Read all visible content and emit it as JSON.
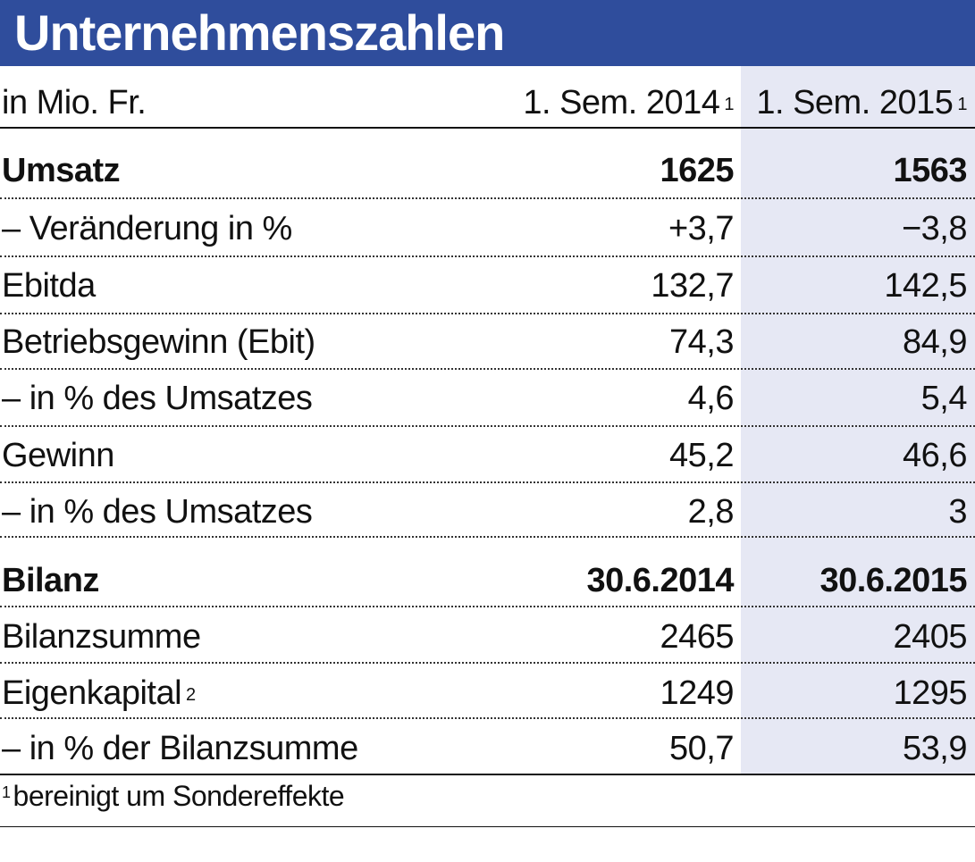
{
  "title": "Unternehmenszahlen",
  "header": {
    "unit": "in Mio. Fr.",
    "col1": "1. Sem. 2014",
    "col1_note": "1",
    "col2": "1. Sem. 2015",
    "col2_note": "1"
  },
  "rows": [
    {
      "label": "Umsatz",
      "v1": "1625",
      "v2": "1563"
    },
    {
      "label": "– Veränderung in %",
      "v1": "+3,7",
      "v2": "−3,8"
    },
    {
      "label": "Ebitda",
      "v1": "132,7",
      "v2": "142,5"
    },
    {
      "label": "Betriebsgewinn (Ebit)",
      "v1": "74,3",
      "v2": "84,9"
    },
    {
      "label": "– in % des Umsatzes",
      "v1": "4,6",
      "v2": "5,4"
    },
    {
      "label": "Gewinn",
      "v1": "45,2",
      "v2": "46,6"
    },
    {
      "label": "– in % des Umsatzes",
      "v1": "2,8",
      "v2": "3"
    },
    {
      "label": "Bilanz",
      "v1": "30.6.2014",
      "v2": "30.6.2015"
    },
    {
      "label": "Bilanzsumme",
      "v1": "2465",
      "v2": "2405"
    },
    {
      "label": "Eigenkapital",
      "label_note": "2",
      "v1": "1249",
      "v2": "1295"
    },
    {
      "label": "– in % der Bilanzsumme",
      "v1": "50,7",
      "v2": "53,9"
    }
  ],
  "footnote": {
    "marker": "1",
    "text": "bereinigt um Sondereffekte"
  },
  "colors": {
    "title_bg": "#2f4d9c",
    "title_text": "#ffffff",
    "column_shade": "#e6e8f4"
  }
}
